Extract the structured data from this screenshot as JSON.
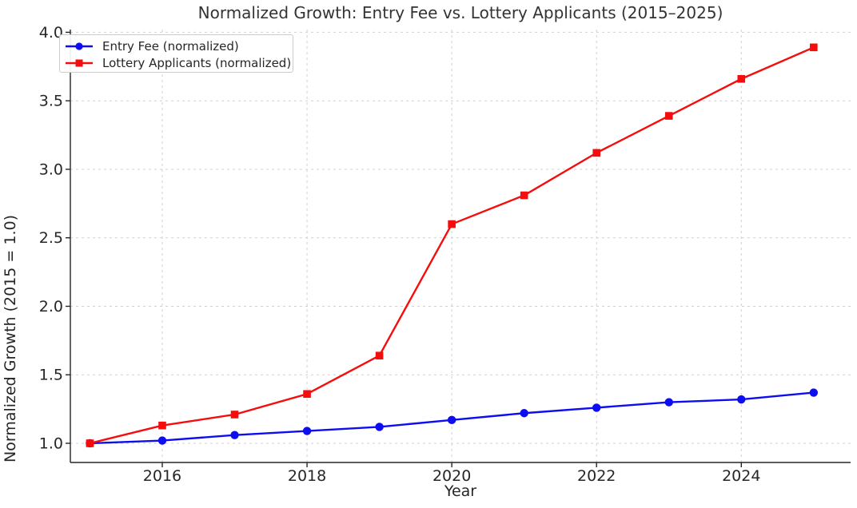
{
  "chart_data": {
    "type": "line",
    "title": "Normalized Growth: Entry Fee vs. Lottery Applicants (2015–2025)",
    "xlabel": "Year",
    "ylabel": "Normalized Growth (2015 = 1.0)",
    "x": [
      2015,
      2016,
      2017,
      2018,
      2019,
      2020,
      2021,
      2022,
      2023,
      2024,
      2025
    ],
    "series": [
      {
        "id": "entry-fee",
        "name": "Entry Fee (normalized)",
        "color": "#0d0df2",
        "marker": "circle",
        "values": [
          1.0,
          1.02,
          1.06,
          1.09,
          1.12,
          1.17,
          1.22,
          1.26,
          1.3,
          1.32,
          1.37
        ]
      },
      {
        "id": "lottery-applicants",
        "name": "Lottery Applicants (normalized)",
        "color": "#f50d0d",
        "marker": "square",
        "values": [
          1.0,
          1.13,
          1.21,
          1.36,
          1.64,
          2.6,
          2.81,
          3.12,
          3.39,
          3.66,
          3.89
        ]
      }
    ],
    "xticks": [
      2016,
      2018,
      2020,
      2022,
      2024
    ],
    "yticks": [
      1.0,
      1.5,
      2.0,
      2.5,
      3.0,
      3.5,
      4.0
    ],
    "xlim": [
      2014.73,
      2025.51
    ],
    "ylim": [
      0.86,
      4.02
    ],
    "grid": true,
    "grid_style": "dashed",
    "legend_position": "upper-left",
    "colors": {
      "grid": "#cccccc",
      "spine": "#262626",
      "tick_label": "#262626",
      "title": "#333333",
      "background": "#ffffff"
    }
  }
}
